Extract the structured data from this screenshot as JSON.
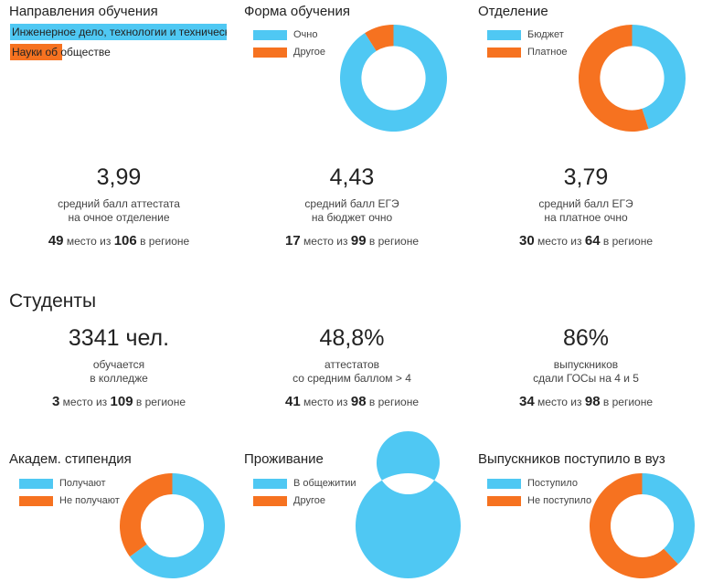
{
  "colors": {
    "blue": "#4fc8f3",
    "orange": "#f67220"
  },
  "directions": {
    "title": "Направления обучения",
    "items": [
      {
        "label": "Инженерное дело, технологии и технические науки",
        "color": "#4fc8f3",
        "share": 1.0
      },
      {
        "label": "Науки об обществе",
        "color": "#f67220",
        "share": 0.24
      }
    ]
  },
  "form": {
    "title": "Форма обучения",
    "legend": [
      {
        "label": "Очно",
        "color": "#4fc8f3"
      },
      {
        "label": "Другое",
        "color": "#f67220"
      }
    ],
    "chart_data": {
      "type": "pie",
      "labels": [
        "Очно",
        "Другое"
      ],
      "values": [
        91,
        9
      ]
    }
  },
  "department": {
    "title": "Отделение",
    "legend": [
      {
        "label": "Бюджет",
        "color": "#4fc8f3"
      },
      {
        "label": "Платное",
        "color": "#f67220"
      }
    ],
    "chart_data": {
      "type": "pie",
      "labels": [
        "Бюджет",
        "Платное"
      ],
      "values": [
        45,
        55
      ]
    }
  },
  "stats1": [
    {
      "value": "3,99",
      "desc1": "средний балл аттестата",
      "desc2": "на очное отделение",
      "place": "49",
      "mid": "место из",
      "total": "106",
      "suffix": "в регионе"
    },
    {
      "value": "4,43",
      "desc1": "средний балл ЕГЭ",
      "desc2": "на бюджет очно",
      "place": "17",
      "mid": "место из",
      "total": "99",
      "suffix": "в регионе"
    },
    {
      "value": "3,79",
      "desc1": "средний балл ЕГЭ",
      "desc2": "на платное очно",
      "place": "30",
      "mid": "место из",
      "total": "64",
      "suffix": "в регионе"
    }
  ],
  "students_title": "Студенты",
  "stats2": [
    {
      "value": "3341 чел.",
      "desc1": "обучается",
      "desc2": "в колледже",
      "place": "3",
      "mid": "место из",
      "total": "109",
      "suffix": "в регионе"
    },
    {
      "value": "48,8%",
      "desc1": "аттестатов",
      "desc2": "со средним баллом > 4",
      "place": "41",
      "mid": "место из",
      "total": "98",
      "suffix": "в регионе"
    },
    {
      "value": "86%",
      "desc1": "выпускников",
      "desc2": "сдали ГОСы на 4 и 5",
      "place": "34",
      "mid": "место из",
      "total": "98",
      "suffix": "в регионе"
    }
  ],
  "scholarship": {
    "title": "Академ. стипендия",
    "legend": [
      {
        "label": "Получают",
        "color": "#4fc8f3"
      },
      {
        "label": "Не получают",
        "color": "#f67220"
      }
    ],
    "chart_data": {
      "type": "pie",
      "labels": [
        "Получают",
        "Не получают"
      ],
      "values": [
        65,
        35
      ]
    }
  },
  "housing": {
    "title": "Проживание",
    "legend": [
      {
        "label": "В общежитии",
        "color": "#4fc8f3"
      },
      {
        "label": "Другое",
        "color": "#f67220"
      }
    ],
    "chart_data": {
      "type": "pie",
      "labels": [
        "В общежитии",
        "Другое"
      ],
      "values": [
        100,
        0
      ]
    }
  },
  "university": {
    "title": "Выпускников поступило в вуз",
    "legend": [
      {
        "label": "Поступило",
        "color": "#4fc8f3"
      },
      {
        "label": "Не поступило",
        "color": "#f67220"
      }
    ],
    "chart_data": {
      "type": "pie",
      "labels": [
        "Поступило",
        "Не поступило"
      ],
      "values": [
        38,
        62
      ]
    }
  }
}
